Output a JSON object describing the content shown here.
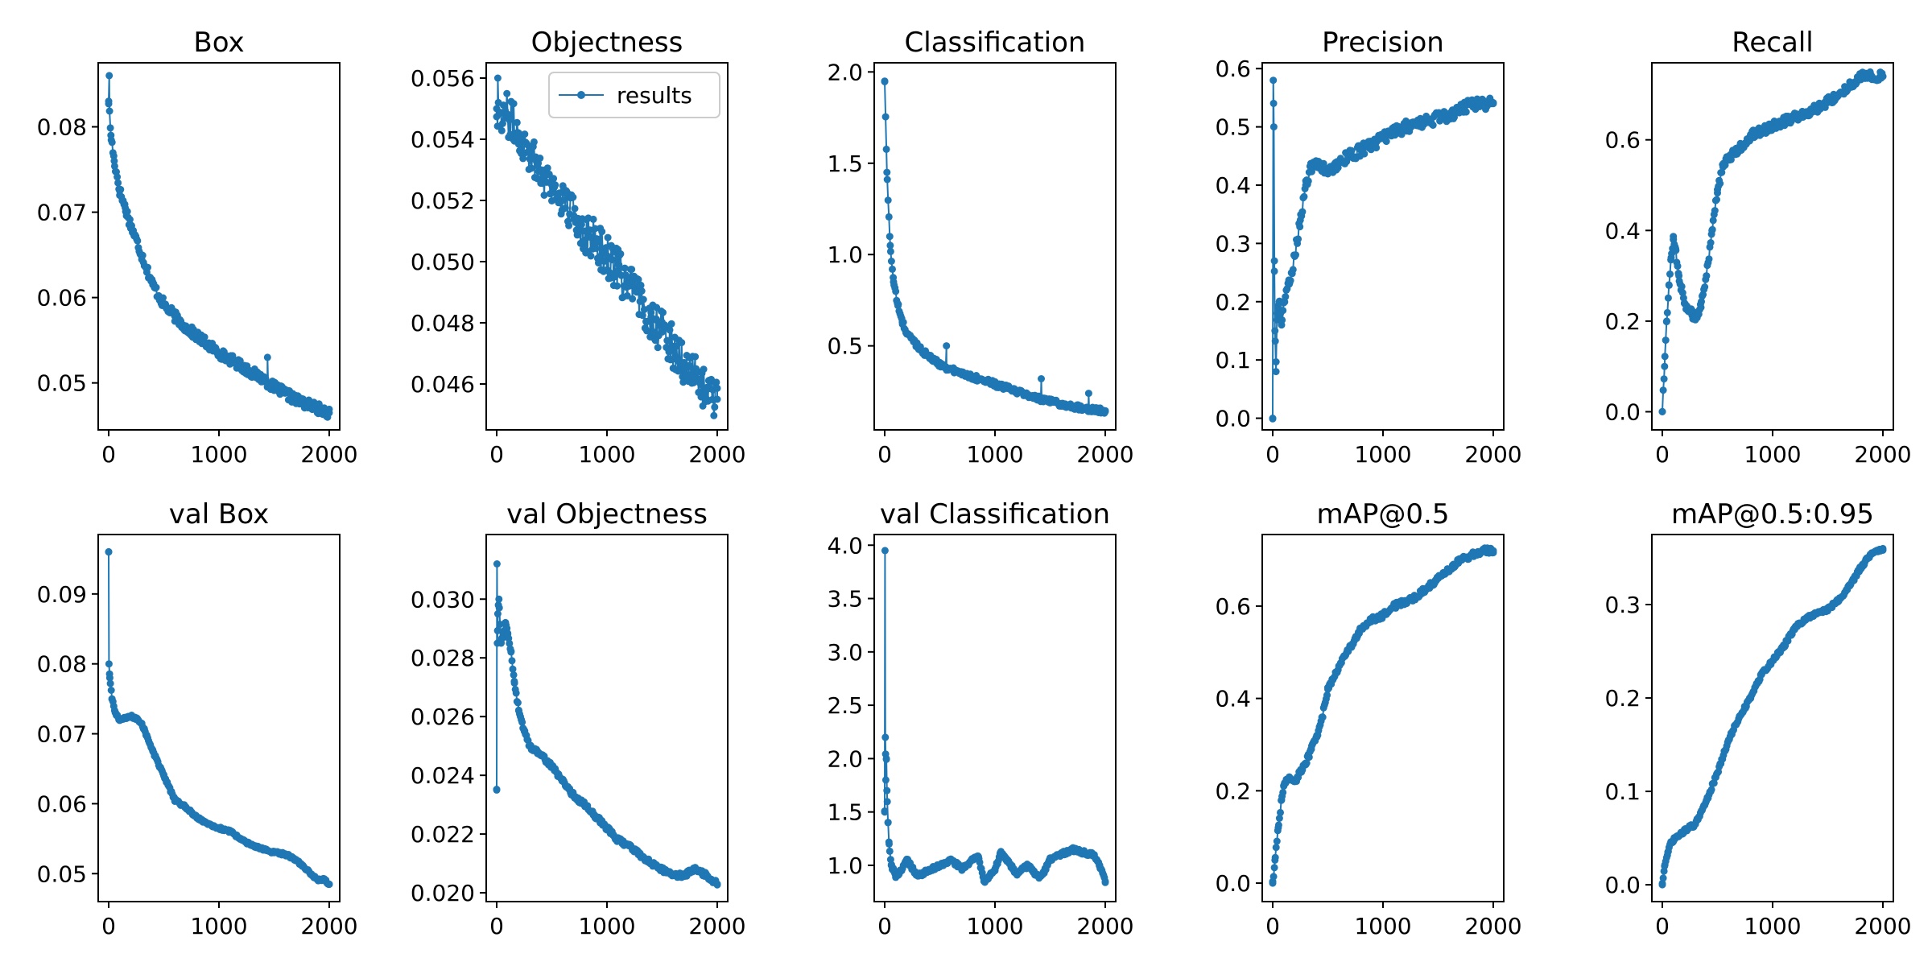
{
  "figure": {
    "series_color": "#1f77b4",
    "legend": {
      "label": "results",
      "placement": "upper-right of Objectness panel"
    }
  },
  "chart_data": [
    {
      "type": "line",
      "title": "Box",
      "xlim": [
        0,
        2000
      ],
      "ylim": [
        0.0445,
        0.0875
      ],
      "xticks": [
        0,
        1000,
        2000
      ],
      "yticks": [
        0.05,
        0.06,
        0.07,
        0.08
      ],
      "ytick_labels": [
        "0.05",
        "0.06",
        "0.07",
        "0.08"
      ],
      "x": [
        0,
        20,
        50,
        100,
        150,
        200,
        300,
        400,
        500,
        600,
        700,
        800,
        900,
        1000,
        1100,
        1200,
        1300,
        1400,
        1500,
        1600,
        1700,
        1800,
        1900,
        2000
      ],
      "values": [
        0.083,
        0.079,
        0.076,
        0.0725,
        0.0705,
        0.0685,
        0.065,
        0.0615,
        0.0592,
        0.0578,
        0.0565,
        0.0555,
        0.0545,
        0.0535,
        0.0528,
        0.052,
        0.0512,
        0.0505,
        0.0495,
        0.0488,
        0.048,
        0.0475,
        0.047,
        0.0465
      ],
      "noise": 0.0006,
      "spikes": [
        [
          5,
          0.086
        ],
        [
          1440,
          0.053
        ]
      ]
    },
    {
      "type": "line",
      "title": "Objectness",
      "xlim": [
        0,
        2000
      ],
      "ylim": [
        0.0445,
        0.0565
      ],
      "xticks": [
        0,
        1000,
        2000
      ],
      "yticks": [
        0.046,
        0.048,
        0.05,
        0.052,
        0.054,
        0.056
      ],
      "ytick_labels": [
        "0.046",
        "0.048",
        "0.050",
        "0.052",
        "0.054",
        "0.056"
      ],
      "x": [
        0,
        100,
        200,
        300,
        400,
        500,
        600,
        700,
        800,
        900,
        1000,
        1100,
        1200,
        1300,
        1400,
        1500,
        1600,
        1700,
        1800,
        1900,
        2000
      ],
      "values": [
        0.055,
        0.0548,
        0.0542,
        0.0536,
        0.053,
        0.0525,
        0.052,
        0.0515,
        0.051,
        0.0506,
        0.0502,
        0.0497,
        0.0492,
        0.0487,
        0.0482,
        0.0477,
        0.0472,
        0.0467,
        0.0462,
        0.0458,
        0.0455
      ],
      "noise": 0.0007,
      "spikes": [
        [
          10,
          0.056
        ],
        [
          1450,
          0.0485
        ]
      ],
      "legend": true
    },
    {
      "type": "line",
      "title": "Classification",
      "xlim": [
        0,
        2000
      ],
      "ylim": [
        0.04,
        2.05
      ],
      "xticks": [
        0,
        1000,
        2000
      ],
      "yticks": [
        0.5,
        1.0,
        1.5,
        2.0
      ],
      "ytick_labels": [
        "0.5",
        "1.0",
        "1.5",
        "2.0"
      ],
      "x": [
        0,
        20,
        50,
        80,
        120,
        160,
        200,
        300,
        400,
        500,
        600,
        800,
        1000,
        1200,
        1400,
        1600,
        1800,
        2000
      ],
      "values": [
        1.95,
        1.45,
        1.05,
        0.85,
        0.72,
        0.63,
        0.57,
        0.5,
        0.44,
        0.4,
        0.37,
        0.33,
        0.29,
        0.25,
        0.21,
        0.18,
        0.16,
        0.14
      ],
      "noise": 0.015,
      "spikes": [
        [
          1420,
          0.32
        ],
        [
          1850,
          0.24
        ],
        [
          560,
          0.5
        ]
      ]
    },
    {
      "type": "line",
      "title": "Precision",
      "xlim": [
        0,
        2000
      ],
      "ylim": [
        -0.02,
        0.61
      ],
      "xticks": [
        0,
        1000,
        2000
      ],
      "yticks": [
        0.0,
        0.1,
        0.2,
        0.3,
        0.4,
        0.5,
        0.6
      ],
      "ytick_labels": [
        "0.0",
        "0.1",
        "0.2",
        "0.3",
        "0.4",
        "0.5",
        "0.6"
      ],
      "x": [
        0,
        5,
        10,
        15,
        20,
        30,
        40,
        60,
        80,
        100,
        150,
        200,
        250,
        300,
        350,
        400,
        500,
        600,
        800,
        1000,
        1200,
        1400,
        1600,
        1800,
        2000
      ],
      "values": [
        0.0,
        0.58,
        0.5,
        0.27,
        0.15,
        0.08,
        0.18,
        0.2,
        0.16,
        0.2,
        0.23,
        0.28,
        0.34,
        0.4,
        0.43,
        0.44,
        0.42,
        0.44,
        0.46,
        0.48,
        0.5,
        0.51,
        0.52,
        0.54,
        0.54
      ],
      "noise": 0.01,
      "spikes": []
    },
    {
      "type": "line",
      "title": "Recall",
      "xlim": [
        0,
        2000
      ],
      "ylim": [
        -0.04,
        0.77
      ],
      "xticks": [
        0,
        1000,
        2000
      ],
      "yticks": [
        0.0,
        0.2,
        0.4,
        0.6
      ],
      "ytick_labels": [
        "0.0",
        "0.2",
        "0.4",
        "0.6"
      ],
      "x": [
        0,
        20,
        40,
        60,
        80,
        100,
        120,
        150,
        200,
        250,
        300,
        350,
        400,
        450,
        500,
        550,
        600,
        700,
        800,
        900,
        1000,
        1200,
        1400,
        1600,
        1800,
        1900,
        2000
      ],
      "values": [
        0.0,
        0.1,
        0.2,
        0.28,
        0.34,
        0.38,
        0.36,
        0.3,
        0.24,
        0.22,
        0.21,
        0.23,
        0.3,
        0.4,
        0.49,
        0.54,
        0.56,
        0.58,
        0.61,
        0.62,
        0.63,
        0.65,
        0.67,
        0.7,
        0.74,
        0.74,
        0.74
      ],
      "noise": 0.01,
      "spikes": []
    },
    {
      "type": "line",
      "title": "val Box",
      "xlim": [
        0,
        2000
      ],
      "ylim": [
        0.046,
        0.0985
      ],
      "xticks": [
        0,
        1000,
        2000
      ],
      "yticks": [
        0.05,
        0.06,
        0.07,
        0.08,
        0.09
      ],
      "ytick_labels": [
        "0.05",
        "0.06",
        "0.07",
        "0.08",
        "0.09"
      ],
      "x": [
        0,
        3,
        10,
        30,
        60,
        100,
        150,
        200,
        250,
        300,
        350,
        400,
        500,
        600,
        700,
        800,
        900,
        1000,
        1100,
        1200,
        1300,
        1400,
        1500,
        1600,
        1700,
        1800,
        1900,
        1950,
        2000
      ],
      "values": [
        0.096,
        0.08,
        0.078,
        0.075,
        0.073,
        0.072,
        0.0722,
        0.0725,
        0.0722,
        0.0715,
        0.0695,
        0.0675,
        0.064,
        0.0605,
        0.0595,
        0.058,
        0.0572,
        0.0565,
        0.056,
        0.055,
        0.054,
        0.0535,
        0.053,
        0.0528,
        0.052,
        0.0505,
        0.049,
        0.0492,
        0.0485
      ],
      "noise": 0.0002,
      "spikes": []
    },
    {
      "type": "line",
      "title": "val Objectness",
      "xlim": [
        0,
        2000
      ],
      "ylim": [
        0.0197,
        0.0322
      ],
      "xticks": [
        0,
        1000,
        2000
      ],
      "yticks": [
        0.02,
        0.022,
        0.024,
        0.026,
        0.028,
        0.03
      ],
      "ytick_labels": [
        "0.020",
        "0.022",
        "0.024",
        "0.026",
        "0.028",
        "0.030"
      ],
      "x": [
        0,
        3,
        6,
        10,
        20,
        40,
        60,
        80,
        100,
        130,
        160,
        200,
        250,
        300,
        400,
        500,
        600,
        700,
        800,
        900,
        1000,
        1100,
        1200,
        1300,
        1400,
        1500,
        1600,
        1700,
        1800,
        1900,
        2000
      ],
      "values": [
        0.0235,
        0.0312,
        0.0285,
        0.0295,
        0.03,
        0.0285,
        0.0288,
        0.0292,
        0.0288,
        0.0282,
        0.0272,
        0.0262,
        0.0255,
        0.025,
        0.0247,
        0.0243,
        0.0238,
        0.0233,
        0.023,
        0.0226,
        0.0222,
        0.0218,
        0.0216,
        0.0213,
        0.021,
        0.0208,
        0.0206,
        0.0206,
        0.0208,
        0.0206,
        0.0203
      ],
      "noise": 8e-05,
      "spikes": []
    },
    {
      "type": "line",
      "title": "val Classification",
      "xlim": [
        0,
        2000
      ],
      "ylim": [
        0.66,
        4.1
      ],
      "xticks": [
        0,
        1000,
        2000
      ],
      "yticks": [
        1.0,
        1.5,
        2.0,
        2.5,
        3.0,
        3.5,
        4.0
      ],
      "ytick_labels": [
        "1.0",
        "1.5",
        "2.0",
        "2.5",
        "3.0",
        "3.5",
        "4.0"
      ],
      "x": [
        0,
        3,
        6,
        10,
        15,
        20,
        30,
        40,
        60,
        80,
        100,
        150,
        200,
        300,
        400,
        500,
        600,
        700,
        800,
        850,
        900,
        1000,
        1050,
        1100,
        1200,
        1300,
        1400,
        1450,
        1500,
        1600,
        1700,
        1800,
        1900,
        1950,
        2000
      ],
      "values": [
        1.5,
        3.95,
        2.2,
        1.8,
        2.0,
        1.7,
        1.4,
        1.2,
        1.0,
        0.95,
        0.9,
        0.95,
        1.05,
        0.9,
        0.95,
        1.0,
        1.05,
        0.97,
        1.05,
        1.08,
        0.85,
        0.95,
        1.12,
        1.05,
        0.92,
        1.0,
        0.88,
        0.95,
        1.05,
        1.1,
        1.15,
        1.12,
        1.1,
        1.0,
        0.85
      ],
      "noise": 0.02,
      "spikes": []
    },
    {
      "type": "line",
      "title": "mAP@0.5",
      "xlim": [
        0,
        2000
      ],
      "ylim": [
        -0.04,
        0.755
      ],
      "xticks": [
        0,
        1000,
        2000
      ],
      "yticks": [
        0.0,
        0.2,
        0.4,
        0.6
      ],
      "ytick_labels": [
        "0.0",
        "0.2",
        "0.4",
        "0.6"
      ],
      "x": [
        0,
        20,
        50,
        80,
        100,
        150,
        200,
        250,
        300,
        350,
        400,
        450,
        500,
        600,
        700,
        800,
        900,
        1000,
        1100,
        1200,
        1300,
        1400,
        1500,
        1600,
        1700,
        1800,
        1900,
        2000
      ],
      "values": [
        0.0,
        0.05,
        0.12,
        0.18,
        0.21,
        0.23,
        0.22,
        0.24,
        0.26,
        0.29,
        0.32,
        0.36,
        0.42,
        0.47,
        0.51,
        0.55,
        0.57,
        0.58,
        0.6,
        0.61,
        0.62,
        0.64,
        0.66,
        0.68,
        0.7,
        0.71,
        0.72,
        0.72
      ],
      "noise": 0.006,
      "spikes": []
    },
    {
      "type": "line",
      "title": "mAP@0.5:0.95",
      "xlim": [
        0,
        2000
      ],
      "ylim": [
        -0.018,
        0.375
      ],
      "xticks": [
        0,
        1000,
        2000
      ],
      "yticks": [
        0.0,
        0.1,
        0.2,
        0.3
      ],
      "ytick_labels": [
        "0.0",
        "0.1",
        "0.2",
        "0.3"
      ],
      "x": [
        0,
        20,
        50,
        80,
        100,
        150,
        200,
        300,
        400,
        500,
        600,
        700,
        800,
        900,
        1000,
        1100,
        1200,
        1300,
        1400,
        1500,
        1600,
        1700,
        1800,
        1900,
        2000
      ],
      "values": [
        0.0,
        0.02,
        0.035,
        0.045,
        0.048,
        0.052,
        0.058,
        0.065,
        0.09,
        0.12,
        0.155,
        0.18,
        0.2,
        0.225,
        0.24,
        0.255,
        0.275,
        0.285,
        0.29,
        0.295,
        0.305,
        0.32,
        0.34,
        0.355,
        0.36
      ],
      "noise": 0.002,
      "spikes": []
    }
  ]
}
